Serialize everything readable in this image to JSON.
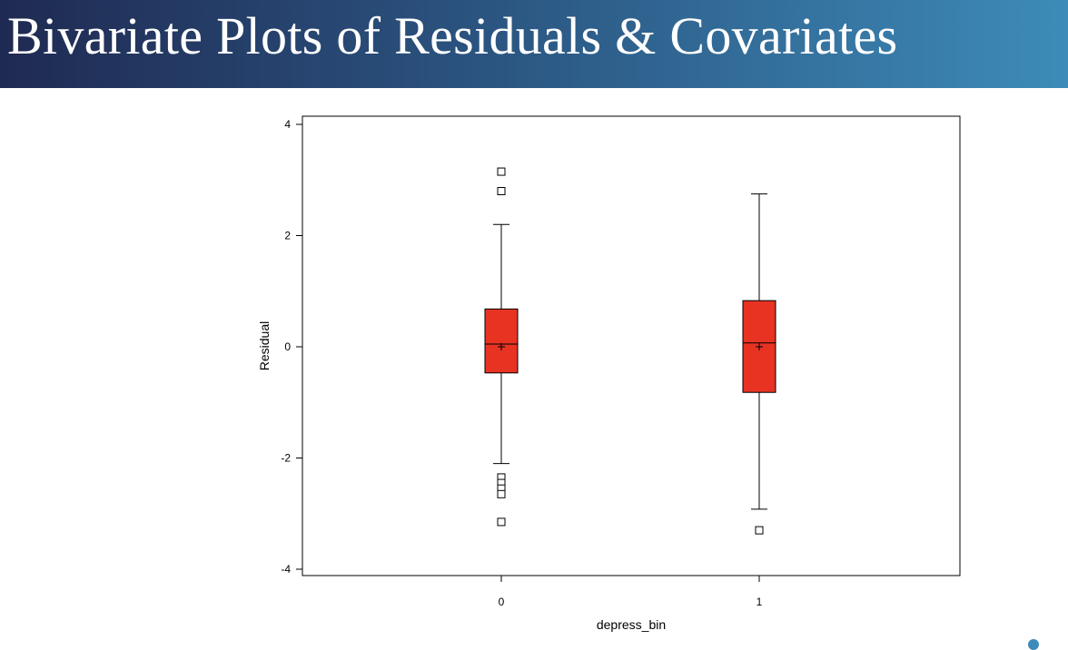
{
  "slide": {
    "title": "Bivariate Plots of Residuals & Covariates"
  },
  "colors": {
    "box_fill": "#e83323",
    "box_stroke": "#000000"
  },
  "chart_data": {
    "type": "box",
    "title": "",
    "xlabel": "depress_bin",
    "ylabel": "Residual",
    "ylim": [
      -4.1,
      4.1
    ],
    "yticks": [
      -4,
      -2,
      0,
      2,
      4
    ],
    "categories": [
      "0",
      "1"
    ],
    "boxes": [
      {
        "category": "0",
        "whisker_low": -2.1,
        "q1": -0.47,
        "median": 0.05,
        "q3": 0.68,
        "whisker_high": 2.2,
        "mean": 0.0,
        "outliers": [
          3.15,
          2.8,
          -2.35,
          -2.45,
          -2.55,
          -2.65,
          -3.15
        ]
      },
      {
        "category": "1",
        "whisker_low": -2.92,
        "q1": -0.82,
        "median": 0.07,
        "q3": 0.83,
        "whisker_high": 2.75,
        "mean": 0.0,
        "outliers": [
          -3.3
        ]
      }
    ],
    "grid": false,
    "legend": "none"
  }
}
